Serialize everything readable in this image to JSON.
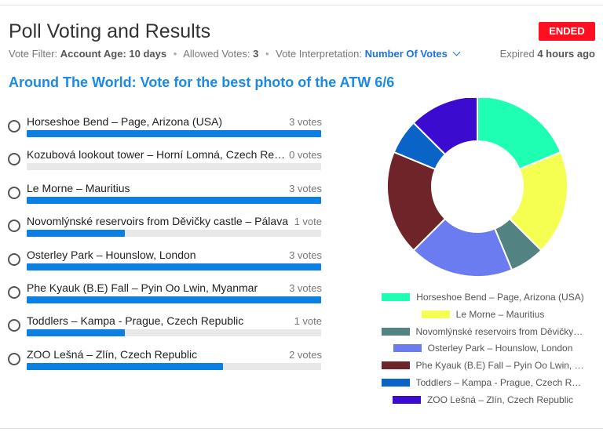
{
  "header": {
    "title": "Poll Voting and Results",
    "status_badge": "ENDED",
    "filter_label": "Vote Filter:",
    "filter_value": "Account Age: 10 days",
    "allowed_label": "Allowed Votes:",
    "allowed_value": "3",
    "interpretation_label": "Vote Interpretation:",
    "interpretation_value": "Number Of Votes",
    "expired_prefix": "Expired",
    "expired_value": "4 hours ago"
  },
  "poll": {
    "question": "Around The World: Vote for the best photo of the ATW 6/6",
    "max_votes": 3,
    "options": [
      {
        "label": "Horseshoe Bend – Page, Arizona (USA)",
        "votes": 3,
        "votes_text": "3 votes"
      },
      {
        "label": "Kozubová lookout tower – Horní Lomná, Czech Republic",
        "votes": 0,
        "votes_text": "0 votes"
      },
      {
        "label": "Le Morne – Mauritius",
        "votes": 3,
        "votes_text": "3 votes"
      },
      {
        "label": "Novomlýnské reservoirs from Děvičky castle – Pálava",
        "votes": 1,
        "votes_text": "1 vote"
      },
      {
        "label": "Osterley Park – Hounslow, London",
        "votes": 3,
        "votes_text": "3 votes"
      },
      {
        "label": "Phe Kyauk (B.E) Fall – Pyin Oo Lwin, Myanmar",
        "votes": 3,
        "votes_text": "3 votes"
      },
      {
        "label": "Toddlers – Kampa - Prague, Czech Republic",
        "votes": 1,
        "votes_text": "1 vote"
      },
      {
        "label": "ZOO Lešná – Zlín, Czech Republic",
        "votes": 2,
        "votes_text": "2 votes"
      }
    ]
  },
  "colors": {
    "accent": "#1a8ae6",
    "bar": "#0c7fe3",
    "badge": "#ff0f1f"
  },
  "icons": {
    "radio": "radio-unchecked-icon",
    "dropdown": "chevron-down-icon"
  },
  "chart_data": {
    "type": "pie",
    "variant": "donut",
    "legend_position": "bottom",
    "categories": [
      "Horseshoe Bend – Page, Arizona (USA)",
      "Le Morne – Mauritius",
      "Novomlýnské reservoirs from Děvičky castle – Pálava",
      "Osterley Park – Hounslow, London",
      "Phe Kyauk (B.E) Fall – Pyin Oo Lwin, Myanmar",
      "Toddlers – Kampa - Prague, Czech Republic",
      "ZOO Lešná – Zlín, Czech Republic"
    ],
    "values": [
      3,
      3,
      1,
      3,
      3,
      1,
      2
    ],
    "colors": [
      "#1effb4",
      "#f5ff52",
      "#528282",
      "#6b7cf0",
      "#6e2429",
      "#0a64c8",
      "#3b0cd0"
    ]
  }
}
